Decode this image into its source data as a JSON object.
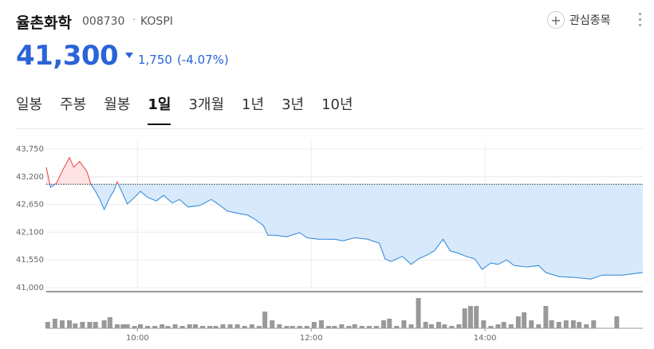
{
  "header": {
    "name": "율촌화학",
    "code": "008730",
    "market": "KOSPI",
    "price": "41,300",
    "change": "1,750",
    "change_pct": "(-4.07%)",
    "watch_button": "관심종목"
  },
  "tabs": {
    "items": [
      "일봉",
      "주봉",
      "월봉",
      "1일",
      "3개월",
      "1년",
      "3년",
      "10년"
    ],
    "selected": 3
  },
  "chart_data": {
    "type": "line",
    "up_color": "#e84545",
    "down_color": "#2a86d8",
    "up_fill": "#fde3e3",
    "down_fill": "#d8e9fb",
    "baseline": 43050,
    "x": [
      537,
      540,
      544,
      548,
      553,
      556,
      560,
      565,
      568,
      571,
      574,
      577,
      581,
      584,
      586,
      589,
      593,
      598,
      602,
      607,
      613,
      618,
      624,
      629,
      635,
      643,
      651,
      657,
      662,
      670,
      676,
      681,
      687,
      690,
      695,
      703,
      712,
      717,
      725,
      736,
      742,
      750,
      759,
      767,
      771,
      775,
      783,
      789,
      794,
      800,
      805,
      811,
      816,
      822,
      827,
      833,
      838,
      844,
      849,
      855,
      860,
      869,
      877,
      882,
      891,
      902,
      913,
      921,
      935,
      949
    ],
    "values": [
      43390,
      42990,
      43070,
      43310,
      43580,
      43390,
      43500,
      43310,
      43040,
      42910,
      42750,
      42550,
      42790,
      42940,
      43100,
      42910,
      42660,
      42790,
      42910,
      42790,
      42720,
      42830,
      42680,
      42750,
      42600,
      42630,
      42750,
      42630,
      42520,
      42470,
      42440,
      42360,
      42230,
      42040,
      42040,
      42010,
      42090,
      41990,
      41960,
      41960,
      41930,
      41990,
      41960,
      41880,
      41570,
      41520,
      41620,
      41460,
      41570,
      41650,
      41730,
      41960,
      41730,
      41680,
      41620,
      41570,
      41360,
      41490,
      41460,
      41550,
      41440,
      41410,
      41440,
      41300,
      41220,
      41200,
      41170,
      41250,
      41250,
      41300
    ],
    "xlim": [
      537,
      949
    ],
    "xticks": [
      {
        "value": 600,
        "label": "10:00"
      },
      {
        "value": 720,
        "label": "12:00"
      },
      {
        "value": 840,
        "label": "14:00"
      }
    ],
    "ylim": [
      41000,
      43750
    ],
    "yticks": [
      {
        "value": 41000,
        "label": "41,000"
      },
      {
        "value": 41550,
        "label": "41,550"
      },
      {
        "value": 42100,
        "label": "42,100"
      },
      {
        "value": 42650,
        "label": "42,650"
      },
      {
        "value": 43200,
        "label": "43,200"
      },
      {
        "value": 43750,
        "label": "43,750"
      }
    ],
    "grid": true,
    "volume": {
      "color": "#999999",
      "ylim": [
        0,
        45
      ],
      "x": [
        538,
        543,
        548,
        553,
        557,
        562,
        567,
        571,
        577,
        581,
        586,
        590,
        593,
        598,
        602,
        607,
        612,
        617,
        621,
        626,
        631,
        636,
        640,
        645,
        650,
        654,
        659,
        664,
        669,
        674,
        679,
        684,
        688,
        693,
        698,
        703,
        707,
        712,
        717,
        722,
        727,
        732,
        736,
        741,
        746,
        750,
        755,
        760,
        765,
        770,
        774,
        779,
        784,
        789,
        794,
        799,
        803,
        808,
        812,
        817,
        822,
        826,
        830,
        834,
        839,
        844,
        849,
        853,
        858,
        863,
        867,
        872,
        877,
        882,
        886,
        891,
        896,
        901,
        905,
        910,
        915,
        931
      ],
      "values": [
        8,
        12,
        10,
        10,
        6,
        8,
        8,
        8,
        10,
        14,
        5,
        5,
        5,
        3,
        5,
        3,
        3,
        5,
        3,
        5,
        3,
        5,
        5,
        3,
        3,
        3,
        5,
        5,
        5,
        3,
        5,
        3,
        21,
        10,
        5,
        3,
        3,
        3,
        3,
        8,
        10,
        3,
        3,
        5,
        3,
        5,
        3,
        3,
        3,
        10,
        12,
        3,
        10,
        5,
        38,
        8,
        5,
        8,
        5,
        3,
        5,
        25,
        28,
        28,
        10,
        3,
        5,
        8,
        5,
        15,
        20,
        10,
        5,
        28,
        10,
        8,
        10,
        10,
        8,
        5,
        10,
        15
      ]
    }
  }
}
